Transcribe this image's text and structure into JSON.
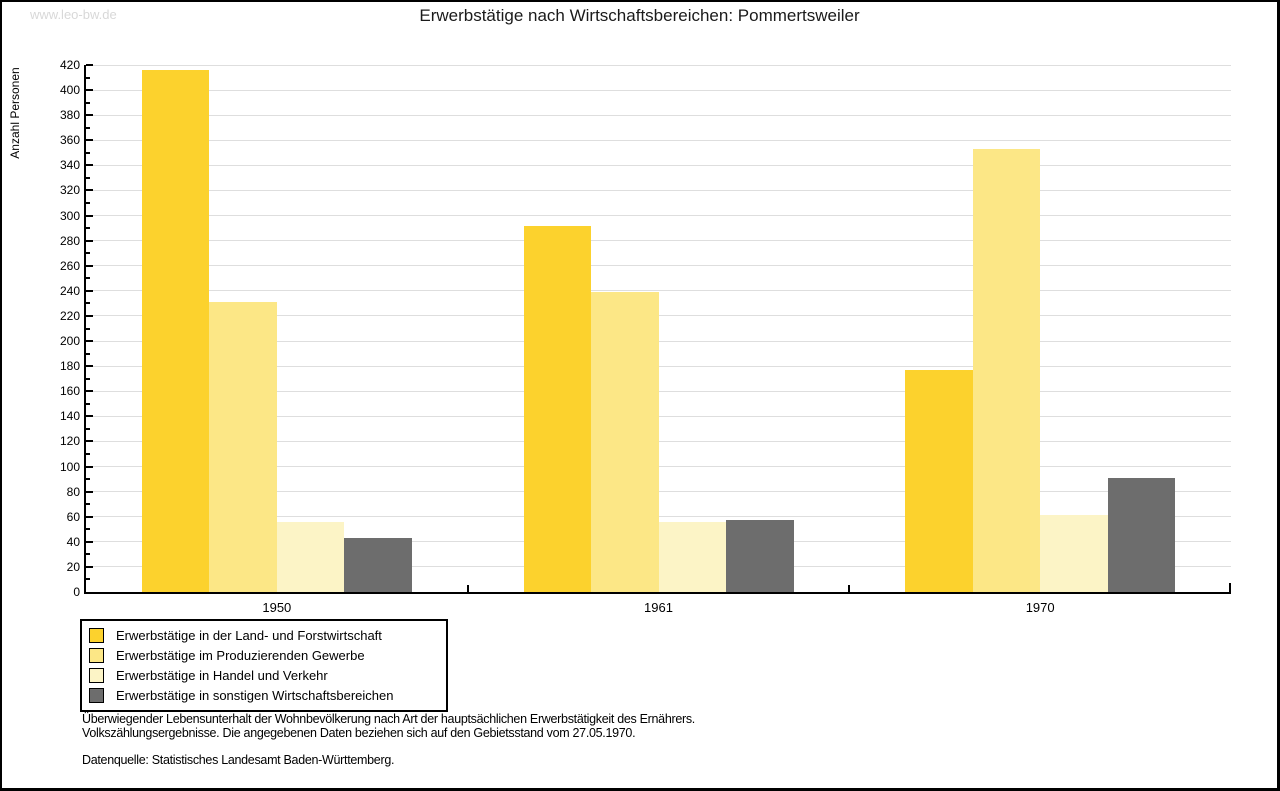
{
  "watermark": "www.leo-bw.de",
  "chart_data": {
    "type": "bar",
    "title": "Erwerbstätige nach Wirtschaftsbereichen: Pommertsweiler",
    "ylabel": "Anzahl Personen",
    "xlabel": "",
    "categories": [
      "1950",
      "1961",
      "1970"
    ],
    "series": [
      {
        "name": "Erwerbstätige in der Land- und Forstwirtschaft",
        "color": "#fcd22d",
        "values": [
          416,
          292,
          177
        ]
      },
      {
        "name": "Erwerbstätige im Produzierenden Gewerbe",
        "color": "#fce786",
        "values": [
          231,
          239,
          353
        ]
      },
      {
        "name": "Erwerbstätige in Handel und Verkehr",
        "color": "#fcf4c6",
        "values": [
          56,
          56,
          61
        ]
      },
      {
        "name": "Erwerbstätige in sonstigen Wirtschaftsbereichen",
        "color": "#6d6d6d",
        "values": [
          43,
          57,
          91
        ]
      }
    ],
    "ylim": [
      0,
      420
    ],
    "ytick_label_step": 20,
    "ytick_minor_step": 10,
    "grid": true,
    "legend_position": "bottom-left"
  },
  "footer": {
    "line1": "Überwiegender Lebensunterhalt der Wohnbevölkerung nach Art der hauptsächlichen Erwerbstätigkeit des Ernährers.",
    "line2": "Volkszählungsergebnisse. Die angegebenen Daten beziehen sich auf den Gebietsstand vom 27.05.1970.",
    "source": "Datenquelle: Statistisches Landesamt Baden-Württemberg."
  }
}
